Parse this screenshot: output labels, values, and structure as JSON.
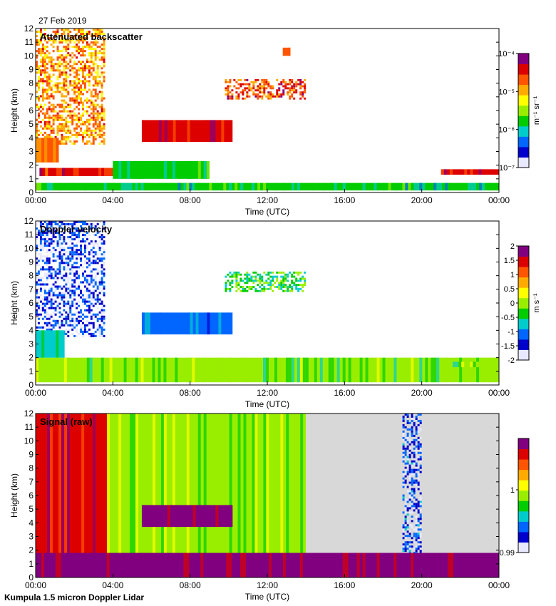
{
  "date": "27 Feb 2019",
  "footer": "Kumpula 1.5 micron Doppler Lidar",
  "palette": [
    "#e8e8ff",
    "#0000cc",
    "#0066ff",
    "#00cccc",
    "#00cc00",
    "#99ee00",
    "#ffff00",
    "#ffaa00",
    "#ff5500",
    "#dd0000",
    "#800080"
  ],
  "colors": {
    "missing": "#d8d8d8",
    "background": "#ffffff"
  },
  "chart_data": [
    {
      "type": "heatmap",
      "title": "Attenuated backscatter",
      "xlabel": "Time (UTC)",
      "ylabel": "Height (km)",
      "xlim": [
        0,
        24
      ],
      "ylim": [
        0,
        12
      ],
      "x_tick_labels": [
        "00:00",
        "04:00",
        "08:00",
        "12:00",
        "16:00",
        "20:00",
        "00:00"
      ],
      "y_tick_labels": [
        "0",
        "1",
        "2",
        "3",
        "4",
        "5",
        "6",
        "7",
        "8",
        "9",
        "10",
        "11",
        "12"
      ],
      "colorbar": {
        "scale": "log",
        "range": [
          1e-07,
          0.0001
        ],
        "label": "m⁻¹ sr⁻¹",
        "tick_labels": [
          "10⁻⁷",
          "10⁻⁶",
          "10⁻⁵",
          "10⁻⁴"
        ]
      },
      "features": [
        {
          "t0": 0,
          "t1": 3.6,
          "h0": 3.5,
          "h1": 12,
          "level": 0.72,
          "style": "speckle"
        },
        {
          "t0": 0,
          "t1": 1.2,
          "h0": 2.2,
          "h1": 4,
          "level": 0.75
        },
        {
          "t0": 0.2,
          "t1": 5,
          "h0": 1.2,
          "h1": 1.8,
          "level": 0.85
        },
        {
          "t0": 5.5,
          "t1": 10.2,
          "h0": 3.7,
          "h1": 5.3,
          "level": 0.9
        },
        {
          "t0": 9.8,
          "t1": 14,
          "h0": 6.8,
          "h1": 8.3,
          "level": 0.82,
          "style": "speckle"
        },
        {
          "t0": 12.8,
          "t1": 13.2,
          "h0": 10,
          "h1": 10.6,
          "level": 0.8
        },
        {
          "t0": 0,
          "t1": 24,
          "h0": 0.15,
          "h1": 0.7,
          "level": 0.35
        },
        {
          "t0": 4,
          "t1": 9,
          "h0": 1,
          "h1": 2.3,
          "level": 0.4
        },
        {
          "t0": 21,
          "t1": 24,
          "h0": 1.3,
          "h1": 1.7,
          "level": 0.88
        }
      ]
    },
    {
      "type": "heatmap",
      "title": "Doppler velocity",
      "xlabel": "Time (UTC)",
      "ylabel": "Height (km)",
      "xlim": [
        0,
        24
      ],
      "ylim": [
        0,
        12
      ],
      "x_tick_labels": [
        "00:00",
        "04:00",
        "08:00",
        "12:00",
        "16:00",
        "20:00",
        "00:00"
      ],
      "y_tick_labels": [
        "0",
        "1",
        "2",
        "3",
        "4",
        "5",
        "6",
        "7",
        "8",
        "9",
        "10",
        "11",
        "12"
      ],
      "colorbar": {
        "scale": "linear",
        "range": [
          -2,
          2
        ],
        "label": "m s⁻¹",
        "tick_labels": [
          "-2",
          "-1.5",
          "-1",
          "-0.5",
          "0",
          "0.5",
          "1",
          "1.5",
          "2"
        ]
      },
      "features": [
        {
          "t0": 0,
          "t1": 3.6,
          "h0": 3.5,
          "h1": 12,
          "level": 0.1,
          "style": "speckle"
        },
        {
          "t0": 0,
          "t1": 24,
          "h0": 0.2,
          "h1": 2,
          "level": 0.45
        },
        {
          "t0": 0,
          "t1": 1.5,
          "h0": 2,
          "h1": 4,
          "level": 0.3
        },
        {
          "t0": 5.5,
          "t1": 10.2,
          "h0": 3.7,
          "h1": 5.3,
          "level": 0.2
        },
        {
          "t0": 9.8,
          "t1": 14,
          "h0": 6.8,
          "h1": 8.3,
          "level": 0.4,
          "style": "speckle"
        },
        {
          "t0": 21,
          "t1": 24,
          "h0": 1.3,
          "h1": 1.7,
          "level": 0.45
        }
      ]
    },
    {
      "type": "heatmap",
      "title": "Signal (raw)",
      "xlabel": "Time (UTC)",
      "ylabel": "Height (km)",
      "xlim": [
        0,
        24
      ],
      "ylim": [
        0,
        12
      ],
      "x_tick_labels": [
        "00:00",
        "04:00",
        "08:00",
        "12:00",
        "16:00",
        "20:00",
        "00:00"
      ],
      "y_tick_labels": [
        "0",
        "1",
        "2",
        "3",
        "4",
        "5",
        "6",
        "7",
        "8",
        "9",
        "10",
        "11",
        "12"
      ],
      "colorbar": {
        "scale": "linear",
        "range": [
          0.99,
          1.01
        ],
        "label": "",
        "tick_labels": [
          "0.99",
          "1"
        ]
      },
      "features": [
        {
          "t0": 0,
          "t1": 3.7,
          "h0": 0,
          "h1": 12,
          "level": 0.88
        },
        {
          "t0": 3.7,
          "t1": 14,
          "h0": 0,
          "h1": 12,
          "level": 0.5
        },
        {
          "t0": 14,
          "t1": 24,
          "h0": 0,
          "h1": 12,
          "level": 0.0,
          "style": "missing"
        },
        {
          "t0": 19,
          "t1": 20,
          "h0": 0,
          "h1": 12,
          "level": 0.12,
          "style": "speckle"
        },
        {
          "t0": 5.5,
          "t1": 10.2,
          "h0": 3.7,
          "h1": 5.3,
          "level": 1.0
        },
        {
          "t0": 0,
          "t1": 24,
          "h0": 0,
          "h1": 1.8,
          "level": 1.0
        }
      ]
    }
  ]
}
